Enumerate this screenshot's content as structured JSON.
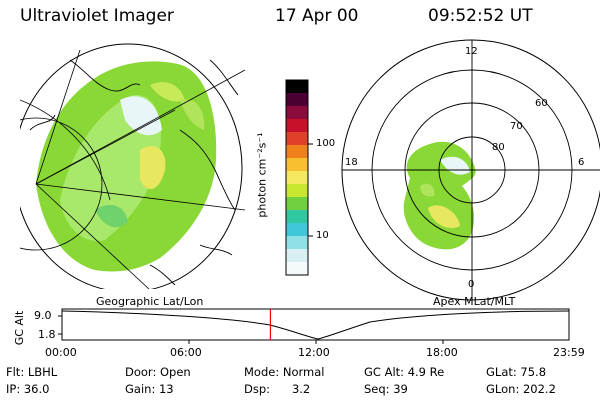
{
  "header": {
    "title": "Ultraviolet Imager",
    "date": "17 Apr 00",
    "time": "09:52:52 UT"
  },
  "colorbar": {
    "unit": "photon cm⁻²s⁻¹",
    "ticks": [
      "100",
      "10"
    ],
    "colors": [
      "#000000",
      "#4b0033",
      "#8a0a3c",
      "#c8102a",
      "#e0402a",
      "#f0801a",
      "#f8c030",
      "#f4e860",
      "#c8e830",
      "#70d040",
      "#30c8a0",
      "#40c8d8",
      "#90e0e8",
      "#d8f0f4",
      "#f4fafc"
    ]
  },
  "polar": {
    "labels": {
      "top": "12",
      "left": "18",
      "right": "6",
      "bottom": "0",
      "lat60": "60",
      "lat70": "70",
      "lat80": "80"
    }
  },
  "timeline": {
    "left_label": "Geographic Lat/Lon",
    "right_label": "Apex MLat/MLT",
    "axis_label": "GC Alt",
    "y_top": "9.0",
    "y_bottom": "1.8",
    "x_ticks": [
      "00:00",
      "06:00",
      "12:00",
      "18:00",
      "23:59"
    ],
    "current_time_fraction": 0.411
  },
  "info": {
    "row1": {
      "flt": "Flt: LBHL",
      "door": "Door: Open",
      "mode": "Mode: Normal",
      "gcalt": "GC Alt: 4.9 Re",
      "glat": "GLat: 75.8"
    },
    "row2": {
      "ip": "IP: 36.0",
      "gain": "Gain: 13",
      "dsp": "Dsp:      3.2",
      "seq": "Seq: 39",
      "glon": "GLon: 202.2"
    }
  }
}
